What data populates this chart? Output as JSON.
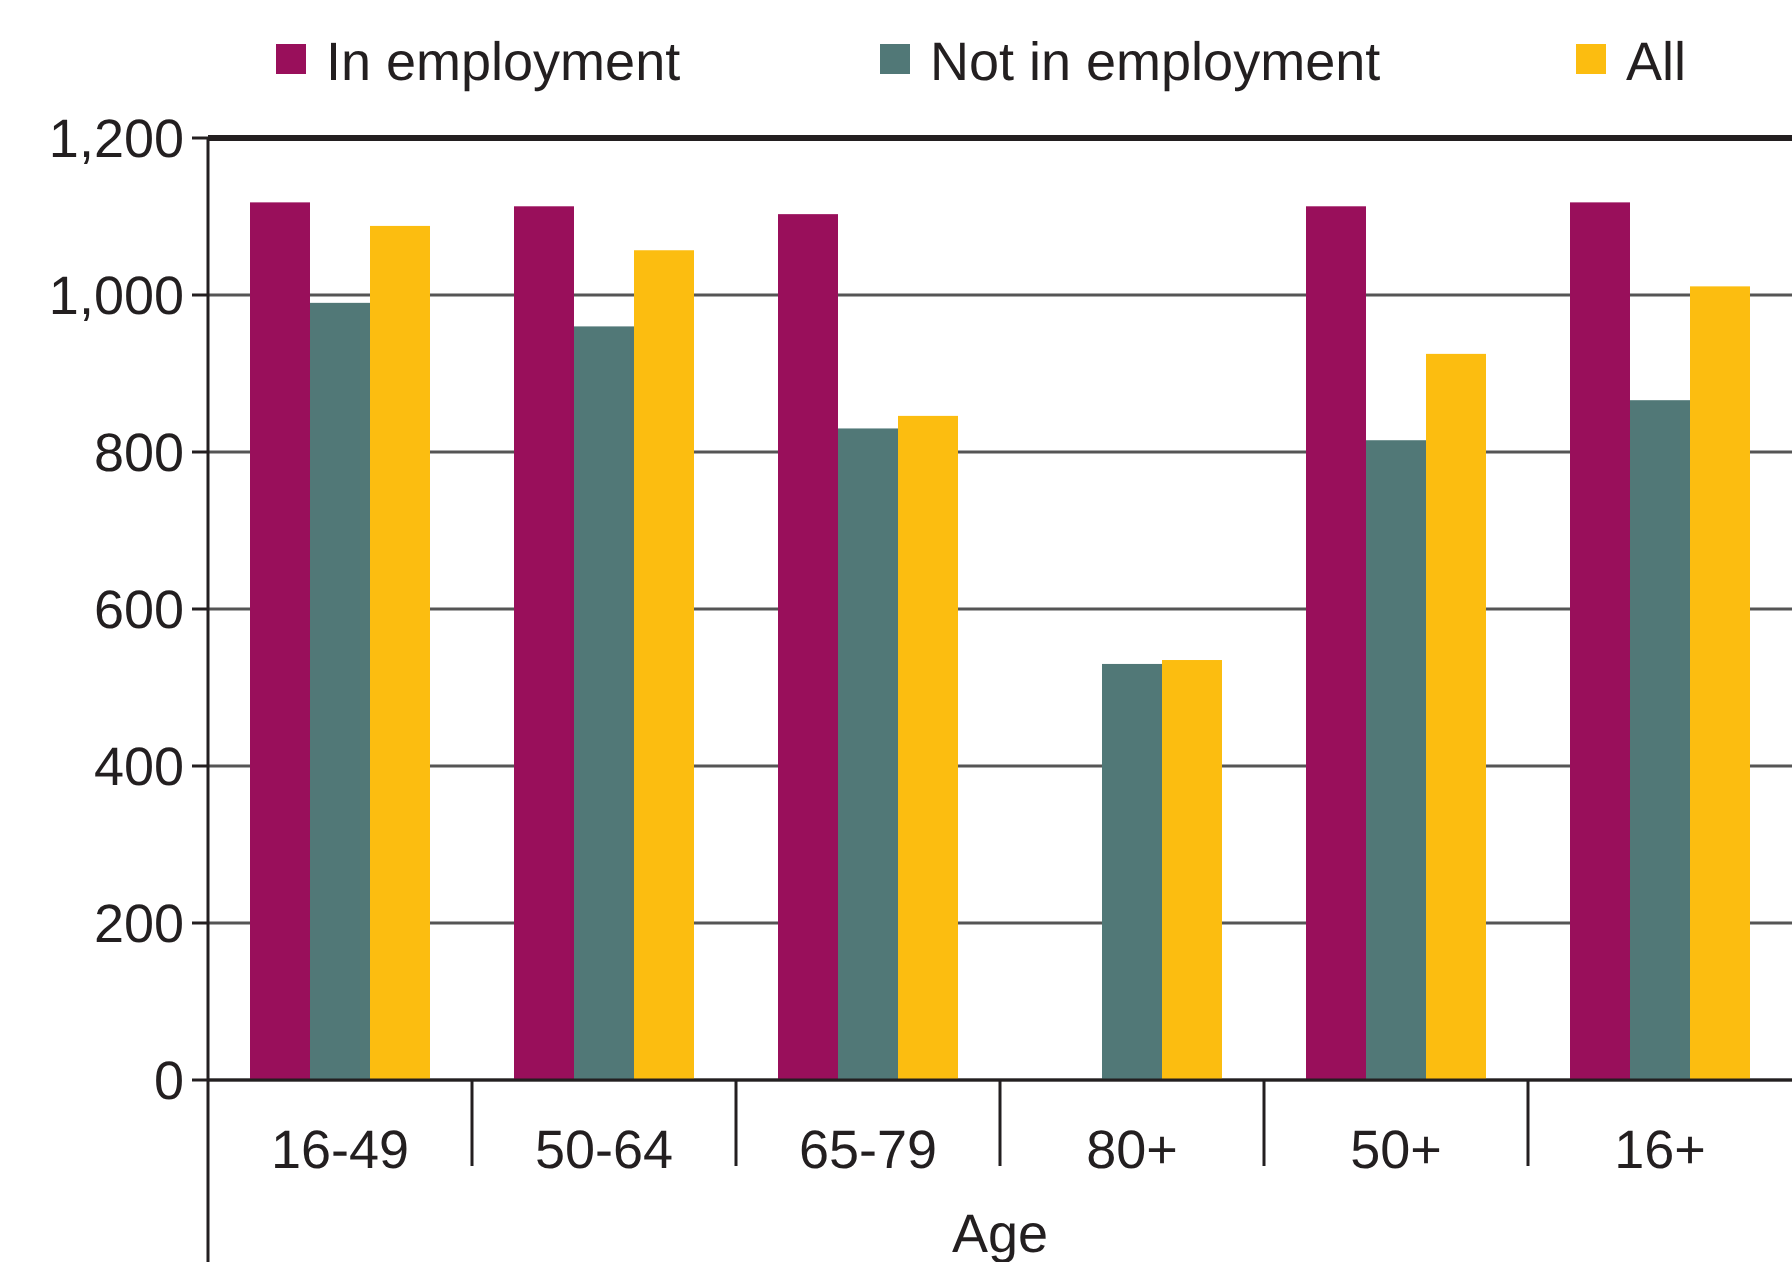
{
  "chart_data": {
    "type": "bar",
    "xlabel": "Age",
    "categories": [
      "16-49",
      "50-64",
      "65-79",
      "80+",
      "50+",
      "16+"
    ],
    "series": [
      {
        "name": "In employment",
        "color": "#990f5b",
        "values": [
          1118,
          1113,
          1103,
          null,
          1113,
          1118
        ]
      },
      {
        "name": "Not in employment",
        "color": "#517877",
        "values": [
          990,
          960,
          830,
          530,
          815,
          866
        ]
      },
      {
        "name": "All",
        "color": "#fcbd10",
        "values": [
          1088,
          1057,
          846,
          535,
          925,
          1011
        ]
      }
    ],
    "ylim": [
      0,
      1200
    ],
    "yticks": [
      0,
      200,
      400,
      600,
      800,
      {
        "value": 1000,
        "label": "1,000"
      },
      {
        "value": 1200,
        "label": "1,200"
      }
    ],
    "grid": "y",
    "legend": "top"
  }
}
